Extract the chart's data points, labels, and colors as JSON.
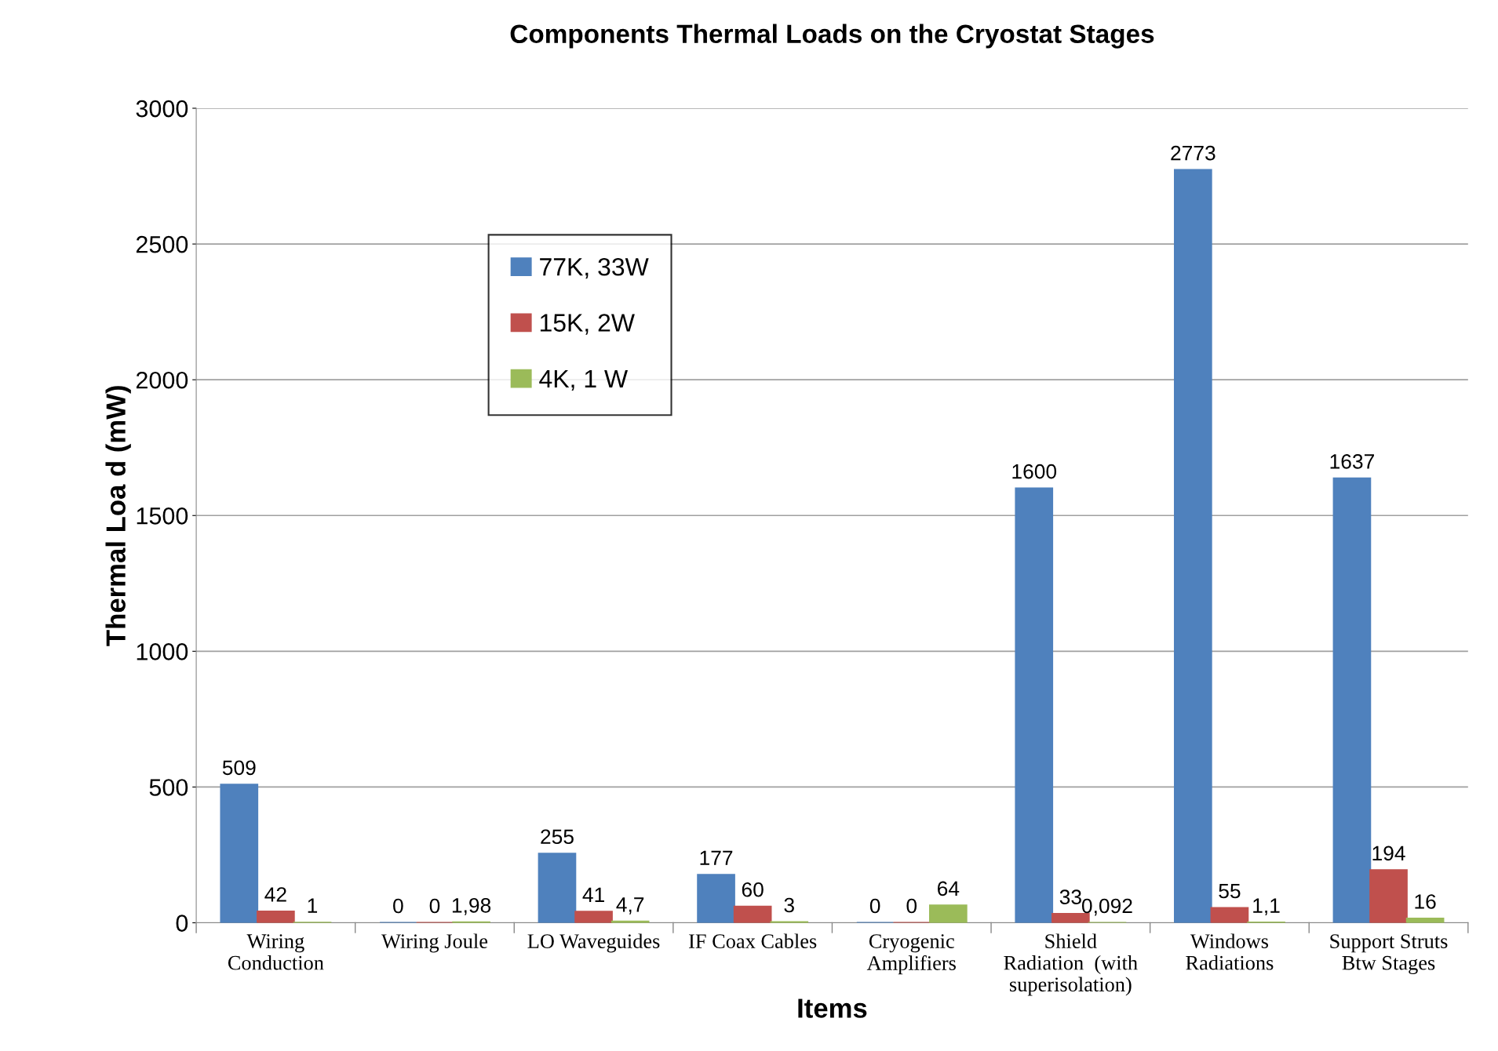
{
  "chart_data": {
    "type": "bar",
    "title": "Components Thermal Loads on the Cryostat Stages",
    "xlabel": "Items",
    "ylabel": "Thermal Loa d (mW)",
    "categories": [
      "Wiring\nConduction",
      "Wiring Joule",
      "LO Waveguides",
      "IF Coax Cables",
      "Cryogenic\nAmplifiers",
      "Shield\nRadiation  (with\nsuperisolation)",
      "Windows\nRadiations",
      "Support Struts\nBtw Stages"
    ],
    "series": [
      {
        "name": "77K, 33W",
        "color": "#4f81bd",
        "values": [
          509,
          0,
          255,
          177,
          0,
          1600,
          2773,
          1637
        ],
        "value_labels": [
          "509",
          "0",
          "255",
          "177",
          "0",
          "1600",
          "2773",
          "1637"
        ]
      },
      {
        "name": "15K, 2W",
        "color": "#c0504d",
        "values": [
          42,
          0,
          41,
          60,
          0,
          33,
          55,
          194
        ],
        "value_labels": [
          "42",
          "0",
          "41",
          "60",
          "0",
          "33",
          "55",
          "194"
        ]
      },
      {
        "name": "4K, 1 W",
        "color": "#9bbb59",
        "values": [
          1,
          1.98,
          4.7,
          3,
          64,
          0.092,
          1.1,
          16
        ],
        "value_labels": [
          "1",
          "1,98",
          "4,7",
          "3",
          "64",
          "0,092",
          "1,1",
          "16"
        ]
      }
    ],
    "ylim": [
      0,
      3000
    ],
    "yticks": [
      0,
      500,
      1000,
      1500,
      2000,
      2500,
      3000
    ],
    "grid": "y",
    "legend": "top left"
  }
}
